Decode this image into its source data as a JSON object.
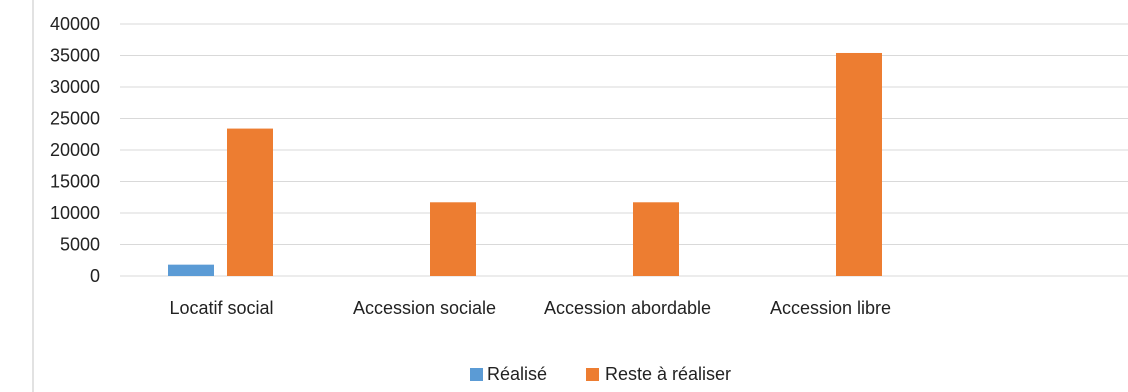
{
  "chart_data": {
    "type": "bar",
    "title": "",
    "xlabel": "",
    "ylabel": "",
    "categories": [
      "Locatif social",
      "Accession sociale",
      "Accession abordable",
      "Accession libre"
    ],
    "series": [
      {
        "name": "Réalisé",
        "values": [
          1800,
          0,
          0,
          0
        ],
        "color": "#5B9BD5"
      },
      {
        "name": "Reste à réaliser",
        "values": [
          23400,
          11700,
          11700,
          35400
        ],
        "color": "#ED7D31"
      }
    ],
    "ylim": [
      0,
      40000
    ],
    "yticks": [
      0,
      5000,
      10000,
      15000,
      20000,
      25000,
      30000,
      35000,
      40000
    ],
    "grid": true,
    "legend_position": "bottom",
    "colors": {
      "gridline": "#D9D9D9",
      "frame_line": "#D9D9D9",
      "text": "#222222"
    }
  }
}
